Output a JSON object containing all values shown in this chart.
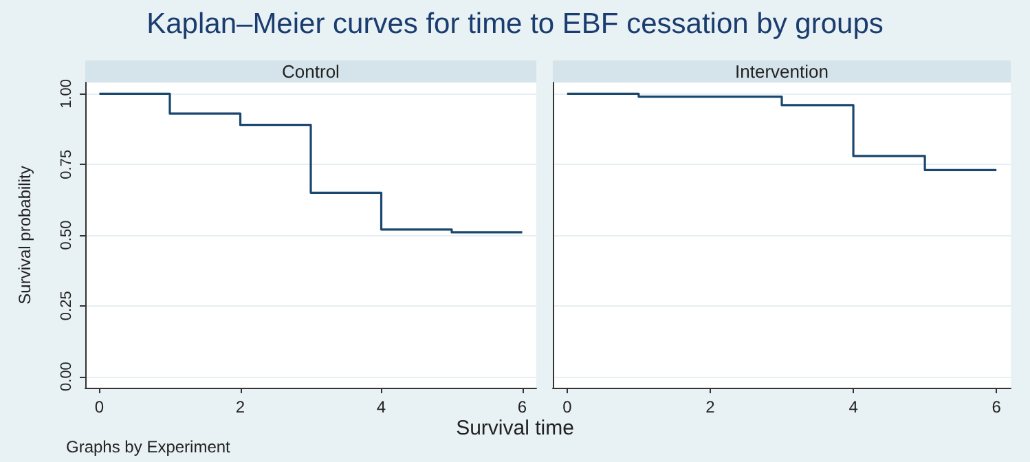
{
  "chart_data": [
    {
      "type": "step",
      "title": "Kaplan–Meier curves for time to EBF cessation by  groups",
      "subtitle": "Control",
      "xlabel": "Survival time",
      "ylabel": "Survival probability",
      "annotations": [
        "Graphs by Experiment"
      ],
      "x": [
        0,
        1,
        2,
        3,
        4,
        5,
        6
      ],
      "series": [
        {
          "color": "#1a476f",
          "values": [
            1,
            0.93,
            0.89,
            0.65,
            0.52,
            0.51,
            0.51
          ]
        }
      ],
      "xlim": [
        -0.2,
        6.2
      ],
      "xticks": [
        0,
        2,
        4,
        6
      ],
      "ylim": [
        -0.04,
        1.04
      ],
      "yticks": [
        {
          "value": 0,
          "label": "0.00"
        },
        {
          "value": 0.25,
          "label": "0.25"
        },
        {
          "value": 0.5,
          "label": "0.50"
        },
        {
          "value": 0.75,
          "label": "0.75"
        },
        {
          "value": 1,
          "label": "1.00"
        }
      ],
      "grid": "y"
    },
    {
      "type": "step",
      "subtitle": "Intervention",
      "x": [
        0,
        1,
        2,
        3,
        4,
        5,
        6
      ],
      "series": [
        {
          "color": "#1a476f",
          "values": [
            1,
            0.99,
            0.99,
            0.96,
            0.78,
            0.73,
            0.73
          ]
        }
      ],
      "xlim": [
        -0.2,
        6.2
      ],
      "xticks": [
        0,
        2,
        4,
        6
      ],
      "ylim": [
        -0.04,
        1.04
      ],
      "yticks": [
        0,
        0.25,
        0.5,
        0.75,
        1
      ],
      "grid": "y",
      "tick_labels": "x"
    }
  ]
}
